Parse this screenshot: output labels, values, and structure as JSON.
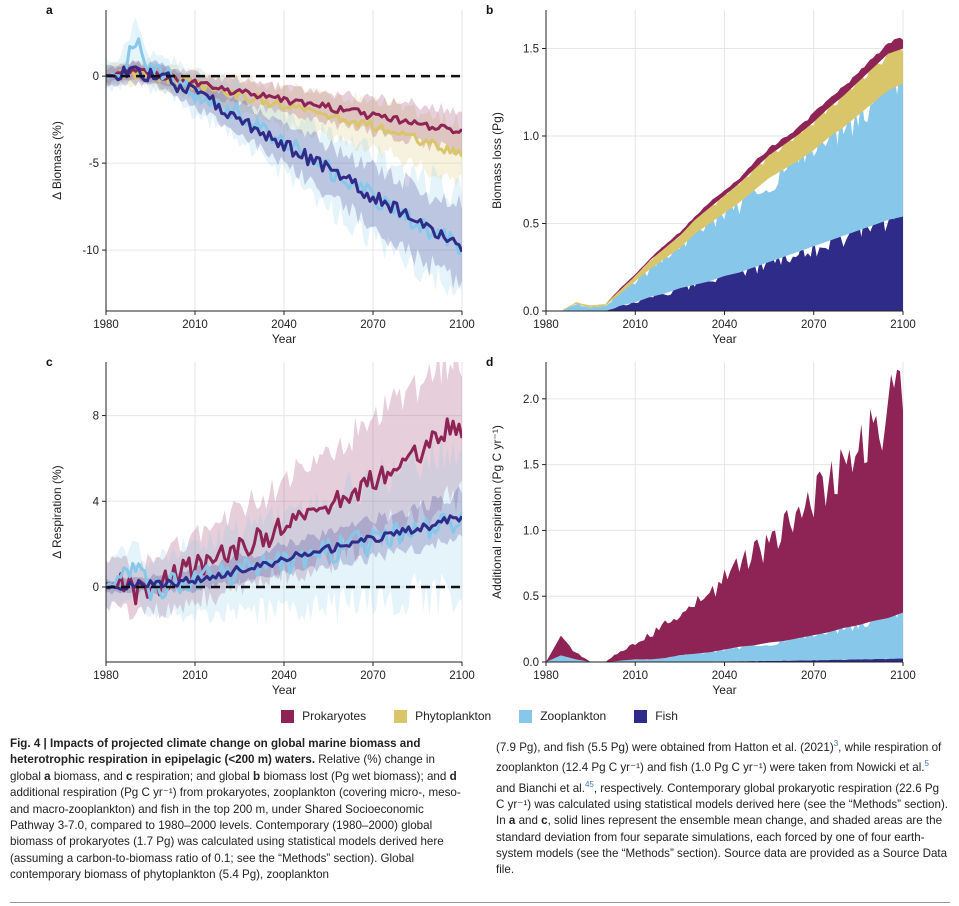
{
  "colors": {
    "prokaryotes": "#8e2356",
    "phytoplankton": "#d9c56a",
    "zooplankton": "#87c8ea",
    "fish": "#2f2b88"
  },
  "legend": {
    "items": [
      {
        "key": "prokaryotes",
        "label": "Prokaryotes"
      },
      {
        "key": "phytoplankton",
        "label": "Phytoplankton"
      },
      {
        "key": "zooplankton",
        "label": "Zooplankton"
      },
      {
        "key": "fish",
        "label": "Fish"
      }
    ]
  },
  "chart_data": [
    {
      "id": "a",
      "panel_label": "a",
      "type": "line",
      "xlabel": "Year",
      "ylabel": "Δ Biomass (%)",
      "xlim": [
        1980,
        2100
      ],
      "ylim": [
        -13.5,
        3.8
      ],
      "xticks": [
        1980,
        2010,
        2040,
        2070,
        2100
      ],
      "yticks": [
        0,
        -5,
        -10
      ],
      "reference_line": 0,
      "series": [
        {
          "name": "Phytoplankton",
          "key": "phytoplankton",
          "x": [
            1980,
            1985,
            1990,
            1995,
            2000,
            2005,
            2010,
            2015,
            2020,
            2025,
            2030,
            2035,
            2040,
            2045,
            2050,
            2055,
            2060,
            2065,
            2070,
            2075,
            2080,
            2085,
            2090,
            2095,
            2100
          ],
          "y": [
            0,
            0.1,
            0.1,
            0.2,
            -0.1,
            -0.3,
            -0.5,
            -0.7,
            -0.9,
            -1.1,
            -1.3,
            -1.5,
            -1.7,
            -1.9,
            -2.1,
            -2.3,
            -2.5,
            -2.7,
            -2.9,
            -3.1,
            -3.3,
            -3.6,
            -3.9,
            -4.2,
            -4.4
          ],
          "sd": [
            0.6,
            0.6,
            0.6,
            0.7,
            0.7,
            0.7,
            0.8,
            0.8,
            0.9,
            0.9,
            1.0,
            1.0,
            1.1,
            1.1,
            1.2,
            1.2,
            1.3,
            1.3,
            1.4,
            1.4,
            1.5,
            1.5,
            1.6,
            1.6,
            1.7
          ]
        },
        {
          "name": "Prokaryotes",
          "key": "prokaryotes",
          "x": [
            1980,
            1985,
            1990,
            1995,
            2000,
            2005,
            2010,
            2015,
            2020,
            2025,
            2030,
            2035,
            2040,
            2045,
            2050,
            2055,
            2060,
            2065,
            2070,
            2075,
            2080,
            2085,
            2090,
            2095,
            2100
          ],
          "y": [
            0,
            0.2,
            0.3,
            0.1,
            0.0,
            -0.2,
            -0.4,
            -0.6,
            -0.8,
            -0.9,
            -1.1,
            -1.2,
            -1.4,
            -1.5,
            -1.7,
            -1.8,
            -2.0,
            -2.1,
            -2.3,
            -2.4,
            -2.6,
            -2.7,
            -2.9,
            -3.0,
            -3.2
          ],
          "sd": [
            0.4,
            0.4,
            0.5,
            0.5,
            0.5,
            0.5,
            0.6,
            0.6,
            0.6,
            0.7,
            0.7,
            0.7,
            0.8,
            0.8,
            0.8,
            0.9,
            0.9,
            0.9,
            1.0,
            1.0,
            1.0,
            1.1,
            1.1,
            1.1,
            1.2
          ]
        },
        {
          "name": "Zooplankton",
          "key": "zooplankton",
          "x": [
            1980,
            1985,
            1990,
            1995,
            2000,
            2005,
            2010,
            2015,
            2020,
            2025,
            2030,
            2035,
            2040,
            2045,
            2050,
            2055,
            2060,
            2065,
            2070,
            2075,
            2080,
            2085,
            2090,
            2095,
            2100
          ],
          "y": [
            0,
            0.3,
            2.0,
            0.2,
            0.2,
            -0.5,
            -1.0,
            -1.3,
            -1.7,
            -2.2,
            -2.7,
            -3.2,
            -3.8,
            -4.3,
            -4.9,
            -5.4,
            -6.0,
            -6.4,
            -6.9,
            -7.5,
            -8.0,
            -8.4,
            -8.9,
            -9.4,
            -9.8
          ],
          "sd": [
            0.8,
            0.9,
            1.1,
            1.0,
            1.0,
            1.1,
            1.2,
            1.3,
            1.4,
            1.5,
            1.6,
            1.7,
            1.8,
            1.9,
            2.0,
            2.1,
            2.2,
            2.3,
            2.4,
            2.5,
            2.6,
            2.7,
            2.8,
            2.9,
            3.0
          ]
        },
        {
          "name": "Fish",
          "key": "fish",
          "x": [
            1980,
            1985,
            1990,
            1995,
            2000,
            2005,
            2010,
            2015,
            2020,
            2025,
            2030,
            2035,
            2040,
            2045,
            2050,
            2055,
            2060,
            2065,
            2070,
            2075,
            2080,
            2085,
            2090,
            2095,
            2100
          ],
          "y": [
            0,
            0.1,
            0.2,
            0.1,
            0.0,
            -0.6,
            -1.0,
            -1.4,
            -1.9,
            -2.4,
            -2.9,
            -3.4,
            -3.9,
            -4.4,
            -4.9,
            -5.4,
            -5.9,
            -6.4,
            -6.9,
            -7.4,
            -7.9,
            -8.4,
            -8.9,
            -9.3,
            -9.7
          ],
          "sd": [
            0.5,
            0.5,
            0.6,
            0.6,
            0.7,
            0.7,
            0.8,
            0.8,
            0.9,
            0.9,
            1.0,
            1.0,
            1.1,
            1.2,
            1.3,
            1.4,
            1.5,
            1.6,
            1.7,
            1.8,
            1.9,
            2.0,
            2.1,
            2.2,
            2.3
          ]
        }
      ]
    },
    {
      "id": "b",
      "panel_label": "b",
      "type": "area",
      "stacked": true,
      "xlabel": "Year",
      "ylabel": "Biomass loss (Pg)",
      "xlim": [
        1980,
        2100
      ],
      "ylim": [
        0,
        1.72
      ],
      "xticks": [
        1980,
        2010,
        2040,
        2070,
        2100
      ],
      "yticks": [
        0.0,
        0.5,
        1.0,
        1.5
      ],
      "x": [
        1980,
        1985,
        1990,
        1995,
        2000,
        2005,
        2010,
        2015,
        2020,
        2025,
        2030,
        2035,
        2040,
        2045,
        2050,
        2055,
        2060,
        2065,
        2070,
        2075,
        2080,
        2085,
        2090,
        2095,
        2100
      ],
      "series": [
        {
          "name": "Fish",
          "key": "fish",
          "values": [
            0,
            0,
            0,
            0,
            0,
            0.03,
            0.05,
            0.08,
            0.1,
            0.13,
            0.15,
            0.17,
            0.2,
            0.22,
            0.25,
            0.28,
            0.31,
            0.34,
            0.37,
            0.4,
            0.43,
            0.46,
            0.49,
            0.52,
            0.54
          ]
        },
        {
          "name": "Zooplankton",
          "key": "zooplankton",
          "values": [
            0,
            0,
            0.04,
            0.02,
            0.03,
            0.07,
            0.12,
            0.16,
            0.2,
            0.23,
            0.29,
            0.33,
            0.36,
            0.4,
            0.44,
            0.48,
            0.5,
            0.52,
            0.55,
            0.59,
            0.62,
            0.66,
            0.7,
            0.74,
            0.76
          ]
        },
        {
          "name": "Phytoplankton",
          "key": "phytoplankton",
          "values": [
            0,
            0,
            0.01,
            0.01,
            0.01,
            0.02,
            0.03,
            0.05,
            0.06,
            0.07,
            0.08,
            0.09,
            0.1,
            0.11,
            0.12,
            0.13,
            0.14,
            0.15,
            0.16,
            0.17,
            0.18,
            0.19,
            0.2,
            0.21,
            0.2
          ]
        },
        {
          "name": "Prokaryotes",
          "key": "prokaryotes",
          "values": [
            0,
            0,
            0,
            0,
            0,
            0.01,
            0.01,
            0.01,
            0.02,
            0.02,
            0.02,
            0.03,
            0.03,
            0.03,
            0.04,
            0.04,
            0.04,
            0.04,
            0.05,
            0.05,
            0.05,
            0.05,
            0.06,
            0.06,
            0.06
          ]
        }
      ]
    },
    {
      "id": "c",
      "panel_label": "c",
      "type": "line",
      "xlabel": "Year",
      "ylabel": "Δ Respiration (%)",
      "xlim": [
        1980,
        2100
      ],
      "ylim": [
        -3.5,
        10.5
      ],
      "xticks": [
        1980,
        2010,
        2040,
        2070,
        2100
      ],
      "yticks": [
        0,
        4,
        8
      ],
      "reference_line": 0,
      "series": [
        {
          "name": "Prokaryotes",
          "key": "prokaryotes",
          "x": [
            1980,
            1985,
            1990,
            1995,
            2000,
            2005,
            2010,
            2015,
            2020,
            2025,
            2030,
            2035,
            2040,
            2045,
            2050,
            2055,
            2060,
            2065,
            2070,
            2075,
            2080,
            2085,
            2090,
            2095,
            2100
          ],
          "y": [
            0,
            0.2,
            -0.3,
            0.1,
            0.3,
            0.6,
            0.9,
            1.2,
            1.5,
            1.8,
            2.1,
            2.4,
            2.9,
            3.1,
            3.4,
            3.7,
            4.2,
            4.5,
            4.9,
            5.4,
            5.8,
            6.3,
            6.8,
            7.5,
            7.4
          ],
          "sd": [
            1.0,
            1.1,
            1.1,
            1.2,
            1.3,
            1.4,
            1.5,
            1.6,
            1.7,
            1.8,
            1.9,
            2.0,
            2.1,
            2.2,
            2.3,
            2.4,
            2.5,
            2.6,
            2.7,
            2.8,
            2.9,
            3.0,
            3.1,
            3.2,
            3.3
          ]
        },
        {
          "name": "Zooplankton",
          "key": "zooplankton",
          "x": [
            1980,
            1985,
            1990,
            1995,
            2000,
            2005,
            2010,
            2015,
            2020,
            2025,
            2030,
            2035,
            2040,
            2045,
            2050,
            2055,
            2060,
            2065,
            2070,
            2075,
            2080,
            2085,
            2090,
            2095,
            2100
          ],
          "y": [
            0,
            0.5,
            0.8,
            -0.2,
            0.1,
            0.3,
            0.2,
            0.5,
            0.6,
            0.7,
            0.9,
            1.0,
            1.1,
            1.2,
            1.4,
            1.6,
            1.8,
            2.0,
            2.1,
            2.3,
            2.5,
            2.7,
            2.9,
            3.0,
            3.1
          ],
          "sd": [
            1.0,
            1.1,
            1.2,
            1.3,
            1.4,
            1.5,
            1.6,
            1.7,
            1.8,
            1.9,
            2.0,
            2.1,
            2.2,
            2.3,
            2.4,
            2.5,
            2.6,
            2.7,
            2.8,
            2.9,
            3.0,
            3.1,
            3.2,
            3.3,
            3.4
          ]
        },
        {
          "name": "Fish",
          "key": "fish",
          "x": [
            1980,
            1985,
            1990,
            1995,
            2000,
            2005,
            2010,
            2015,
            2020,
            2025,
            2030,
            2035,
            2040,
            2045,
            2050,
            2055,
            2060,
            2065,
            2070,
            2075,
            2080,
            2085,
            2090,
            2095,
            2100
          ],
          "y": [
            0,
            0.05,
            0.1,
            0.1,
            0.15,
            0.25,
            0.35,
            0.5,
            0.65,
            0.8,
            0.95,
            1.1,
            1.3,
            1.45,
            1.6,
            1.75,
            1.95,
            2.1,
            2.25,
            2.4,
            2.6,
            2.75,
            2.9,
            3.1,
            3.3
          ],
          "sd": [
            0.3,
            0.3,
            0.3,
            0.4,
            0.4,
            0.4,
            0.5,
            0.5,
            0.5,
            0.6,
            0.6,
            0.6,
            0.7,
            0.7,
            0.7,
            0.8,
            0.8,
            0.8,
            0.9,
            0.9,
            0.9,
            1.0,
            1.0,
            1.0,
            1.1
          ]
        }
      ]
    },
    {
      "id": "d",
      "panel_label": "d",
      "type": "area",
      "stacked": true,
      "xlabel": "Year",
      "ylabel": "Additional respiration (Pg C yr⁻¹)",
      "xlim": [
        1980,
        2100
      ],
      "ylim": [
        0,
        2.28
      ],
      "xticks": [
        1980,
        2010,
        2040,
        2070,
        2100
      ],
      "yticks": [
        0.0,
        0.5,
        1.0,
        1.5,
        2.0
      ],
      "x": [
        1980,
        1985,
        1990,
        1995,
        2000,
        2005,
        2010,
        2015,
        2020,
        2025,
        2030,
        2035,
        2040,
        2045,
        2050,
        2055,
        2060,
        2065,
        2070,
        2075,
        2080,
        2085,
        2090,
        2095,
        2100
      ],
      "series": [
        {
          "name": "Fish",
          "key": "fish",
          "values": [
            0,
            0,
            0,
            0,
            0,
            0,
            0,
            0,
            0,
            0.002,
            0.003,
            0.004,
            0.005,
            0.006,
            0.007,
            0.008,
            0.01,
            0.012,
            0.014,
            0.016,
            0.018,
            0.02,
            0.022,
            0.024,
            0.026
          ]
        },
        {
          "name": "Zooplankton",
          "key": "zooplankton",
          "values": [
            0,
            0.05,
            0.02,
            0,
            0,
            0.01,
            0.02,
            0.02,
            0.03,
            0.05,
            0.06,
            0.07,
            0.09,
            0.11,
            0.12,
            0.14,
            0.15,
            0.17,
            0.19,
            0.21,
            0.24,
            0.26,
            0.29,
            0.31,
            0.35
          ]
        },
        {
          "name": "Prokaryotes",
          "key": "prokaryotes",
          "values": [
            0,
            0.15,
            0.05,
            0,
            0,
            0.07,
            0.12,
            0.18,
            0.25,
            0.3,
            0.36,
            0.45,
            0.55,
            0.62,
            0.68,
            0.78,
            0.85,
            0.92,
            1.02,
            1.1,
            1.2,
            1.3,
            1.4,
            1.55,
            1.7
          ]
        }
      ]
    }
  ],
  "caption": {
    "fig_label": "Fig. 4 |",
    "title": " Impacts of projected climate change on global marine biomass and heterotrophic respiration in epipelagic (<200 m) waters.",
    "p1_a": " Relative (%) change in global ",
    "bold_a": "a",
    "p1_b": " biomass, and ",
    "bold_c": "c",
    "p1_c": " respiration; and global ",
    "bold_b": "b",
    "p1_d": " biomass lost (Pg wet biomass); and ",
    "bold_d": "d",
    "p1_e": " additional respiration (Pg C yr⁻¹) from prokaryotes, zooplankton (covering micro-, meso- and macro-zooplankton) and fish in the top 200 m, under Shared Socioeconomic Pathway 3-7.0, compared to 1980–2000 levels. Contemporary (1980–2000) global biomass of prokaryotes (1.7 Pg) was calculated using statistical models derived here (assuming a carbon-to-biomass ratio of 0.1; see the “Methods” section). Global contemporary biomass of phytoplankton (5.4 Pg), zooplankton",
    "p2_a": "(7.9 Pg), and fish (5.5 Pg) were obtained from Hatton et al. (2021)",
    "ref_3": "3",
    "p2_b": ", while respiration of zooplankton (12.4 Pg C yr⁻¹) and fish (1.0 Pg C yr⁻¹) were taken from Nowicki et al.",
    "ref_5": "5",
    "p2_c": " and Bianchi et al.",
    "ref_45": "45",
    "p2_d": ", respectively. Contemporary global prokaryotic respiration (22.6 Pg C yr⁻¹) was calculated using statistical models derived here (see the “Methods” section). In ",
    "bold_a2": "a",
    "p2_e": " and ",
    "bold_c2": "c",
    "p2_f": ", solid lines represent the ensemble mean change, and shaded areas are the standard deviation from four separate simulations, each forced by one of four earth-system models (see the “Methods” section). Source data are provided as a Source Data file."
  }
}
